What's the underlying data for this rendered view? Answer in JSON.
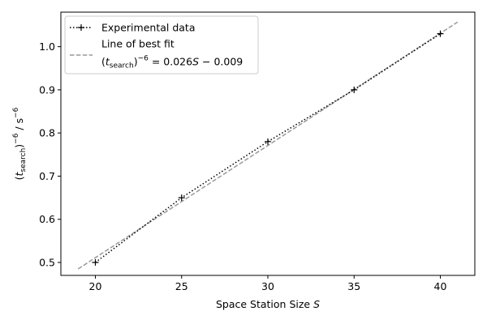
{
  "chart_data": {
    "type": "line",
    "xlabel": "Space Station Size S",
    "ylabel": "(t_search)^-6 / s^-6",
    "xlim": [
      18,
      42
    ],
    "ylim": [
      0.47,
      1.08
    ],
    "x_ticks": [
      20,
      25,
      30,
      35,
      40
    ],
    "y_ticks": [
      0.5,
      0.6,
      0.7,
      0.8,
      0.9,
      1.0
    ],
    "x_tick_labels": [
      "20",
      "25",
      "30",
      "35",
      "40"
    ],
    "y_tick_labels": [
      "0.5",
      "0.6",
      "0.7",
      "0.8",
      "0.9",
      "1.0"
    ],
    "grid": false,
    "legend_position": "top-left",
    "series": [
      {
        "name": "Experimental data",
        "style": "dotted-line-with-plus-markers",
        "color": "#000000",
        "x": [
          20,
          25,
          30,
          35,
          40
        ],
        "y": [
          0.5,
          0.65,
          0.78,
          0.9,
          1.03
        ]
      },
      {
        "name": "Line of best fit",
        "style": "dashed-line",
        "color": "#999999",
        "x": [
          19,
          41
        ],
        "y": [
          0.485,
          1.057
        ]
      }
    ],
    "legend": {
      "entries": [
        "Experimental data",
        "Line of best fit",
        "(t_search)^-6 = 0.026S - 0.009"
      ]
    }
  }
}
